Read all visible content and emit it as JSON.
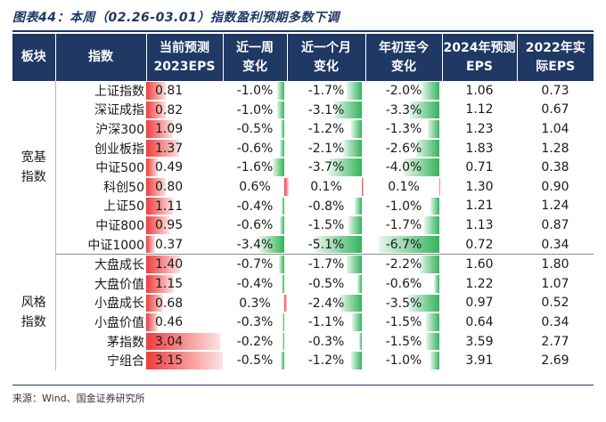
{
  "title": "图表44：本周（02.26-03.01）指数盈利预期多数下调",
  "headers": {
    "block": "板块",
    "index": "指数",
    "eps2023_l1": "当前预测",
    "eps2023_l2": "2023EPS",
    "week_l1": "近一周",
    "week_l2": "变化",
    "month_l1": "近一个月",
    "month_l2": "变化",
    "ytd_l1": "年初至今",
    "ytd_l2": "变化",
    "f2024_l1": "2024年预测",
    "f2024_l2": "EPS",
    "a2022_l1": "2022年实",
    "a2022_l2": "际EPS"
  },
  "groups": [
    {
      "label_l1": "宽基",
      "label_l2": "指数",
      "rows": 9
    },
    {
      "label_l1": "风格",
      "label_l2": "指数",
      "rows": 6
    }
  ],
  "rows": [
    {
      "name": "上证指数",
      "eps2023": "0.81",
      "week": "-1.0%",
      "month": "-1.7%",
      "ytd": "-2.0%",
      "f2024": "1.06",
      "a2022": "0.73"
    },
    {
      "name": "深证成指",
      "eps2023": "0.82",
      "week": "-1.0%",
      "month": "-3.1%",
      "ytd": "-3.3%",
      "f2024": "1.12",
      "a2022": "0.67"
    },
    {
      "name": "沪深300",
      "eps2023": "1.09",
      "week": "-0.5%",
      "month": "-1.2%",
      "ytd": "-1.3%",
      "f2024": "1.23",
      "a2022": "1.04"
    },
    {
      "name": "创业板指",
      "eps2023": "1.37",
      "week": "-0.6%",
      "month": "-2.1%",
      "ytd": "-2.6%",
      "f2024": "1.83",
      "a2022": "1.28"
    },
    {
      "name": "中证500",
      "eps2023": "0.49",
      "week": "-1.6%",
      "month": "-3.7%",
      "ytd": "-4.0%",
      "f2024": "0.71",
      "a2022": "0.38"
    },
    {
      "name": "科创50",
      "eps2023": "0.80",
      "week": "0.6%",
      "month": "0.1%",
      "ytd": "0.1%",
      "f2024": "1.30",
      "a2022": "0.90"
    },
    {
      "name": "上证50",
      "eps2023": "1.11",
      "week": "-0.4%",
      "month": "-0.8%",
      "ytd": "-1.0%",
      "f2024": "1.21",
      "a2022": "1.24"
    },
    {
      "name": "中证800",
      "eps2023": "0.95",
      "week": "-0.6%",
      "month": "-1.5%",
      "ytd": "-1.7%",
      "f2024": "1.13",
      "a2022": "0.87"
    },
    {
      "name": "中证1000",
      "eps2023": "0.37",
      "week": "-3.4%",
      "month": "-5.1%",
      "ytd": "-6.7%",
      "f2024": "0.72",
      "a2022": "0.34"
    },
    {
      "name": "大盘成长",
      "eps2023": "1.40",
      "week": "-0.7%",
      "month": "-1.7%",
      "ytd": "-2.2%",
      "f2024": "1.60",
      "a2022": "1.80"
    },
    {
      "name": "大盘价值",
      "eps2023": "1.15",
      "week": "-0.4%",
      "month": "-0.5%",
      "ytd": "-0.6%",
      "f2024": "1.22",
      "a2022": "1.07"
    },
    {
      "name": "小盘成长",
      "eps2023": "0.68",
      "week": "0.3%",
      "month": "-2.4%",
      "ytd": "-3.5%",
      "f2024": "0.97",
      "a2022": "0.52"
    },
    {
      "name": "小盘价值",
      "eps2023": "0.46",
      "week": "-0.3%",
      "month": "-1.1%",
      "ytd": "-1.5%",
      "f2024": "0.64",
      "a2022": "0.34"
    },
    {
      "name": "茅指数",
      "eps2023": "3.04",
      "week": "-0.2%",
      "month": "-0.3%",
      "ytd": "-1.5%",
      "f2024": "3.59",
      "a2022": "2.77"
    },
    {
      "name": "宁组合",
      "eps2023": "3.15",
      "week": "-0.5%",
      "month": "-1.2%",
      "ytd": "-1.0%",
      "f2024": "3.91",
      "a2022": "2.69"
    }
  ],
  "source": "来源：Wind、国金证券研究所",
  "colors": {
    "header_bg": "#1f3864",
    "header_text": "#ffffff",
    "title_text": "#1f3864",
    "bar_red": "#f03c3c",
    "bar_green": "#35b45c"
  }
}
